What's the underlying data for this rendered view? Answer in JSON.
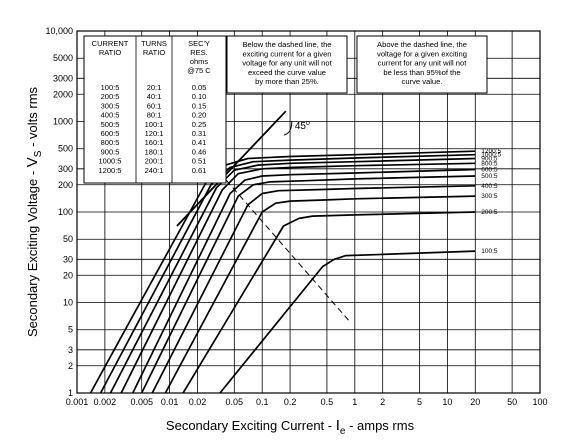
{
  "chart_data": {
    "type": "line",
    "x_scale": "log",
    "y_scale": "log",
    "xlim": [
      0.001,
      100
    ],
    "ylim": [
      1,
      10000
    ],
    "grid": true,
    "xlabel_main": "Secondary Exciting Current - ",
    "xlabel_symbol": "I",
    "xlabel_sub": "e",
    "xlabel_tail": " - amps rms",
    "ylabel_main": "Secondary Exciting Voltage - ",
    "ylabel_symbol": "V",
    "ylabel_sub": "S",
    "ylabel_tail": " - volts rms",
    "x_ticks": [
      {
        "value": 0.001,
        "label": "0.001"
      },
      {
        "value": 0.002,
        "label": "0.002"
      },
      {
        "value": 0.005,
        "label": "0.005"
      },
      {
        "value": 0.01,
        "label": "0.01"
      },
      {
        "value": 0.02,
        "label": "0.02"
      },
      {
        "value": 0.05,
        "label": "0.05"
      },
      {
        "value": 0.1,
        "label": "0.1"
      },
      {
        "value": 0.2,
        "label": "0.2"
      },
      {
        "value": 0.5,
        "label": "0.5"
      },
      {
        "value": 1,
        "label": "1"
      },
      {
        "value": 2,
        "label": "2"
      },
      {
        "value": 5,
        "label": "5"
      },
      {
        "value": 10,
        "label": "10"
      },
      {
        "value": 20,
        "label": "20"
      },
      {
        "value": 50,
        "label": "50"
      },
      {
        "value": 100,
        "label": "100"
      }
    ],
    "y_ticks": [
      {
        "value": 1,
        "label": "1"
      },
      {
        "value": 2,
        "label": "2"
      },
      {
        "value": 3,
        "label": "3"
      },
      {
        "value": 5,
        "label": "5"
      },
      {
        "value": 10,
        "label": "10"
      },
      {
        "value": 20,
        "label": "20"
      },
      {
        "value": 30,
        "label": "30"
      },
      {
        "value": 50,
        "label": "50"
      },
      {
        "value": 100,
        "label": "100"
      },
      {
        "value": 200,
        "label": "200"
      },
      {
        "value": 300,
        "label": "300"
      },
      {
        "value": 500,
        "label": "500"
      },
      {
        "value": 1000,
        "label": "1000"
      },
      {
        "value": 2000,
        "label": "2000"
      },
      {
        "value": 3000,
        "label": "3000"
      },
      {
        "value": 5000,
        "label": "5000"
      },
      {
        "value": 10000,
        "label": "10,000"
      }
    ],
    "series": [
      {
        "name": "1200:5",
        "points": [
          [
            0.0014,
            1
          ],
          [
            0.025,
            215
          ],
          [
            0.04,
            330
          ],
          [
            0.07,
            390
          ],
          [
            0.2,
            410
          ],
          [
            1,
            430
          ],
          [
            20,
            470
          ]
        ]
      },
      {
        "name": "1000:5",
        "points": [
          [
            0.0018,
            1
          ],
          [
            0.028,
            200
          ],
          [
            0.045,
            310
          ],
          [
            0.08,
            360
          ],
          [
            0.2,
            375
          ],
          [
            1,
            395
          ],
          [
            20,
            430
          ]
        ]
      },
      {
        "name": "900:5",
        "points": [
          [
            0.0023,
            1
          ],
          [
            0.032,
            185
          ],
          [
            0.05,
            290
          ],
          [
            0.09,
            330
          ],
          [
            0.2,
            345
          ],
          [
            1,
            360
          ],
          [
            20,
            390
          ]
        ]
      },
      {
        "name": "800:5",
        "points": [
          [
            0.003,
            1
          ],
          [
            0.037,
            175
          ],
          [
            0.055,
            265
          ],
          [
            0.1,
            300
          ],
          [
            0.2,
            310
          ],
          [
            1,
            325
          ],
          [
            20,
            345
          ]
        ]
      },
      {
        "name": "600:5",
        "points": [
          [
            0.004,
            1
          ],
          [
            0.045,
            160
          ],
          [
            0.065,
            225
          ],
          [
            0.1,
            250
          ],
          [
            0.2,
            258
          ],
          [
            1,
            270
          ],
          [
            20,
            295
          ]
        ]
      },
      {
        "name": "500:5",
        "points": [
          [
            0.005,
            1
          ],
          [
            0.055,
            150
          ],
          [
            0.08,
            200
          ],
          [
            0.12,
            215
          ],
          [
            0.3,
            222
          ],
          [
            1,
            232
          ],
          [
            20,
            250
          ]
        ]
      },
      {
        "name": "400:5",
        "points": [
          [
            0.0065,
            1
          ],
          [
            0.07,
            120
          ],
          [
            0.1,
            160
          ],
          [
            0.15,
            172
          ],
          [
            0.4,
            177
          ],
          [
            1,
            182
          ],
          [
            20,
            195
          ]
        ]
      },
      {
        "name": "300:5",
        "points": [
          [
            0.009,
            1
          ],
          [
            0.1,
            100
          ],
          [
            0.14,
            125
          ],
          [
            0.2,
            132
          ],
          [
            0.5,
            136
          ],
          [
            1,
            140
          ],
          [
            20,
            150
          ]
        ]
      },
      {
        "name": "200:5",
        "points": [
          [
            0.014,
            1
          ],
          [
            0.17,
            70
          ],
          [
            0.25,
            85
          ],
          [
            0.35,
            90
          ],
          [
            1,
            93
          ],
          [
            20,
            100
          ]
        ]
      },
      {
        "name": "100:5",
        "points": [
          [
            0.035,
            1
          ],
          [
            0.45,
            25
          ],
          [
            0.6,
            30
          ],
          [
            0.8,
            33
          ],
          [
            2,
            34
          ],
          [
            20,
            37
          ]
        ]
      }
    ],
    "reference_lines": [
      {
        "kind": "45-degree",
        "label": "45",
        "degree_symbol": "o",
        "points": [
          [
            0.012,
            70
          ],
          [
            0.18,
            1300
          ]
        ]
      },
      {
        "kind": "knee-point-dashed",
        "points": [
          [
            0.025,
            400
          ],
          [
            0.9,
            6
          ]
        ]
      }
    ],
    "ratio_table": {
      "headers": [
        [
          "CURRENT",
          "RATIO"
        ],
        [
          "TURNS",
          "RATIO"
        ],
        [
          "SEC'Y",
          "RES.",
          "ohms",
          "@75 C"
        ]
      ],
      "rows": [
        [
          "100:5",
          "20:1",
          "0.05"
        ],
        [
          "200:5",
          "40:1",
          "0.10"
        ],
        [
          "300:5",
          "60:1",
          "0.15"
        ],
        [
          "400:5",
          "80:1",
          "0.20"
        ],
        [
          "500:5",
          "100:1",
          "0.25"
        ],
        [
          "600:5",
          "120:1",
          "0.31"
        ],
        [
          "800:5",
          "160:1",
          "0.41"
        ],
        [
          "900:5",
          "180:1",
          "0.46"
        ],
        [
          "1000:5",
          "200:1",
          "0.51"
        ],
        [
          "1200:5",
          "240:1",
          "0.61"
        ]
      ]
    },
    "annotations": [
      {
        "lines": [
          "Below the dashed line, the",
          "exciting current for a given",
          "voltage for any unit will not",
          "exceed the curve value",
          "by more than 25%."
        ]
      },
      {
        "lines": [
          "Above the dashed line, the",
          "voltage for a given exciting",
          "current for any unit will not",
          "be less than 95%of the",
          "curve value."
        ]
      }
    ]
  }
}
